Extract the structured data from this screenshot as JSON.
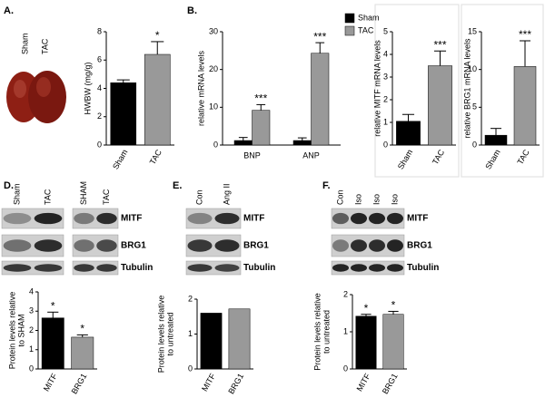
{
  "panel_labels": [
    "A.",
    "B.",
    "D.",
    "E.",
    "F."
  ],
  "photo_labels": [
    "Sham",
    "TAC"
  ],
  "blots": [
    {
      "lanes": [
        "Sham",
        "TAC",
        "SHAM",
        "TAC"
      ],
      "rows": [
        "MITF",
        "BRG1",
        "Tubulin"
      ]
    },
    {
      "lanes": [
        "Con",
        "Ang II"
      ],
      "rows": [
        "MITF",
        "BRG1",
        "Tubulin"
      ]
    },
    {
      "lanes": [
        "Con",
        "Iso",
        "Iso",
        "Iso"
      ],
      "rows": [
        "MITF",
        "BRG1",
        "Tubulin"
      ]
    }
  ],
  "chart_data": [
    {
      "type": "bar",
      "ylabel": [
        "HWBW (mg/g)"
      ],
      "categories": [
        "Sham",
        "TAC"
      ],
      "values": [
        4.4,
        6.4
      ],
      "errors": [
        0.2,
        0.9
      ],
      "colors": [
        "#000000",
        "#999999"
      ],
      "significance": [
        null,
        "*"
      ],
      "ylim": [
        0,
        8
      ],
      "yticks": [
        0,
        2,
        4,
        6,
        8
      ]
    },
    {
      "type": "bar",
      "ylabel": [
        "relative mRNA levels"
      ],
      "categories": [
        "BNP",
        "ANP"
      ],
      "series": [
        {
          "name": "Sham",
          "color": "#000000",
          "values": [
            1.2,
            1.2
          ],
          "errors": [
            0.8,
            0.7
          ]
        },
        {
          "name": "TAC",
          "color": "#999999",
          "values": [
            9.2,
            24.3
          ],
          "errors": [
            1.5,
            2.8
          ],
          "significance": [
            "***",
            "***"
          ]
        }
      ],
      "ylim": [
        0,
        30
      ],
      "yticks": [
        0,
        10,
        20,
        30
      ]
    },
    {
      "type": "bar",
      "ylabel": [
        "relative MITF mRNA levels"
      ],
      "categories": [
        "Sham",
        "TAC"
      ],
      "values": [
        1.05,
        3.5
      ],
      "errors": [
        0.3,
        0.65
      ],
      "colors": [
        "#000000",
        "#999999"
      ],
      "significance": [
        null,
        "***"
      ],
      "ylim": [
        0,
        5
      ],
      "yticks": [
        0,
        1,
        2,
        3,
        4,
        5
      ]
    },
    {
      "type": "bar",
      "ylabel": [
        "relative BRG1 mRNA levels"
      ],
      "categories": [
        "Sham",
        "TAC"
      ],
      "values": [
        1.3,
        10.4
      ],
      "errors": [
        0.9,
        3.4
      ],
      "colors": [
        "#000000",
        "#999999"
      ],
      "significance": [
        null,
        "***"
      ],
      "ylim": [
        0,
        15
      ],
      "yticks": [
        0,
        5,
        10,
        15
      ]
    },
    {
      "type": "bar",
      "ylabel": [
        "Protein levels relative",
        "to SHAM"
      ],
      "categories": [
        "MITF",
        "BRG1"
      ],
      "values": [
        2.65,
        1.65
      ],
      "errors": [
        0.3,
        0.12
      ],
      "colors": [
        "#000000",
        "#999999"
      ],
      "significance": [
        "*",
        "*"
      ],
      "ylim": [
        0,
        4
      ],
      "yticks": [
        0,
        1,
        2,
        3,
        4
      ]
    },
    {
      "type": "bar",
      "ylabel": [
        "Protein levels relative",
        "to untreated"
      ],
      "categories": [
        "MITF",
        "BRG1"
      ],
      "values": [
        1.6,
        1.72
      ],
      "colors": [
        "#000000",
        "#999999"
      ],
      "ylim": [
        0,
        2
      ],
      "yticks": [
        0,
        1,
        2
      ]
    },
    {
      "type": "bar",
      "ylabel": [
        "Protein levels relative",
        "to untreated"
      ],
      "categories": [
        "MITF",
        "BRG1"
      ],
      "values": [
        1.42,
        1.47
      ],
      "errors": [
        0.05,
        0.08
      ],
      "colors": [
        "#000000",
        "#999999"
      ],
      "significance": [
        "*",
        "*"
      ],
      "ylim": [
        0,
        2
      ],
      "yticks": [
        0,
        1,
        2
      ]
    }
  ]
}
